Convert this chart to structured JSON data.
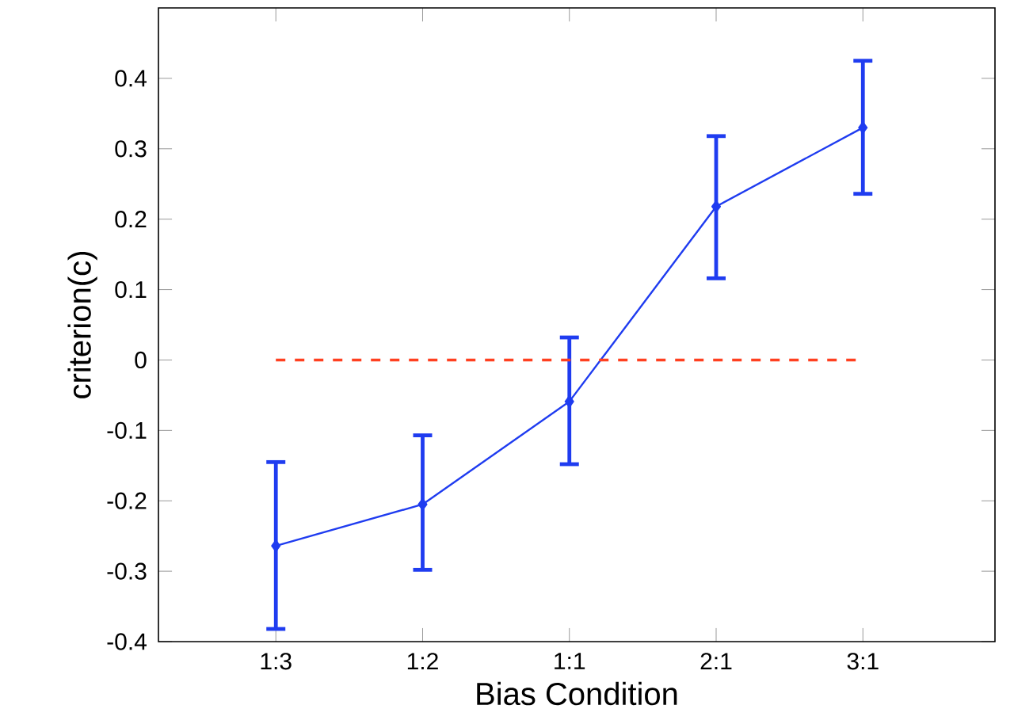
{
  "chart_data": {
    "type": "line",
    "xlabel": "Bias Condition",
    "ylabel": "criterion(c)",
    "categories": [
      "1:3",
      "1:2",
      "1:1",
      "2:1",
      "3:1"
    ],
    "series": [
      {
        "color": "#1f3cf0",
        "values": [
          -0.264,
          -0.205,
          -0.059,
          0.218,
          0.33
        ],
        "errors": [
          [
            -0.382,
            -0.145
          ],
          [
            -0.298,
            -0.107
          ],
          [
            -0.148,
            0.032
          ],
          [
            0.116,
            0.318
          ],
          [
            0.236,
            0.425
          ]
        ]
      }
    ],
    "ylim": [
      -0.4,
      0.5
    ],
    "yticks": [
      -0.4,
      -0.3,
      -0.2,
      -0.1,
      0,
      0.1,
      0.2,
      0.3,
      0.4
    ],
    "marker": "diamond",
    "line_style": "solid",
    "ref_lines": [
      {
        "axis": "y",
        "value": 0,
        "color": "#ff4020",
        "line_style": "dashed"
      }
    ]
  }
}
